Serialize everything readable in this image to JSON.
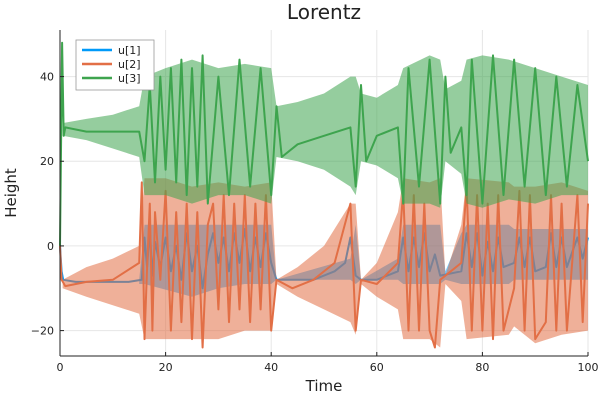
{
  "chart_data": {
    "type": "line",
    "title": "Lorentz",
    "xlabel": "Time",
    "ylabel": "Height",
    "xlim": [
      0,
      100
    ],
    "ylim": [
      -26,
      51
    ],
    "xticks": [
      0,
      20,
      40,
      60,
      80,
      100
    ],
    "yticks": [
      -20,
      0,
      20,
      40
    ],
    "grid": true,
    "legend_position": "top-left",
    "series": [
      {
        "name": "u[1]",
        "color": "#009af9",
        "points": [
          [
            0,
            0
          ],
          [
            0.3,
            -6
          ],
          [
            0.6,
            -8
          ],
          [
            3,
            -8.5
          ],
          [
            8,
            -8.5
          ],
          [
            13,
            -8.5
          ],
          [
            15.5,
            -8
          ],
          [
            16,
            2
          ],
          [
            16.5,
            -5
          ],
          [
            17,
            4
          ],
          [
            17.5,
            -7
          ],
          [
            18,
            1
          ],
          [
            19,
            -5
          ],
          [
            20,
            2
          ],
          [
            21,
            -6
          ],
          [
            22,
            0
          ],
          [
            23,
            -8
          ],
          [
            24,
            3
          ],
          [
            25,
            -6
          ],
          [
            26,
            0
          ],
          [
            27,
            -10
          ],
          [
            28,
            -2
          ],
          [
            29,
            3
          ],
          [
            30,
            -4
          ],
          [
            31,
            2
          ],
          [
            32,
            -6
          ],
          [
            33,
            3
          ],
          [
            34,
            -4
          ],
          [
            35,
            4
          ],
          [
            36,
            -6
          ],
          [
            37,
            2
          ],
          [
            38,
            -5
          ],
          [
            39,
            3
          ],
          [
            40,
            -4
          ],
          [
            41,
            -8
          ],
          [
            43,
            -8
          ],
          [
            48,
            -8
          ],
          [
            52,
            -6
          ],
          [
            54,
            -4
          ],
          [
            55,
            2
          ],
          [
            56,
            -7
          ],
          [
            57,
            -8
          ],
          [
            60,
            -8
          ],
          [
            64,
            -6
          ],
          [
            65,
            2
          ],
          [
            66,
            -6
          ],
          [
            67,
            2
          ],
          [
            68,
            -5
          ],
          [
            69,
            3
          ],
          [
            70,
            -6
          ],
          [
            71,
            -2
          ],
          [
            72,
            -7
          ],
          [
            76,
            -6
          ],
          [
            77,
            3
          ],
          [
            78,
            -5
          ],
          [
            79,
            3
          ],
          [
            80,
            -7
          ],
          [
            81,
            1
          ],
          [
            82,
            -6
          ],
          [
            83,
            2
          ],
          [
            84,
            -5
          ],
          [
            86,
            -4
          ],
          [
            87,
            2
          ],
          [
            88,
            -5
          ],
          [
            89,
            2
          ],
          [
            90,
            -6
          ],
          [
            92,
            -5
          ],
          [
            93,
            3
          ],
          [
            94,
            -5
          ],
          [
            95,
            2
          ],
          [
            96,
            -5
          ],
          [
            98,
            2
          ],
          [
            99,
            -3
          ],
          [
            100,
            2
          ]
        ],
        "envelope": [
          [
            15,
            -9,
            -8
          ],
          [
            16,
            -9,
            5
          ],
          [
            25,
            -12,
            5
          ],
          [
            30,
            -10,
            5
          ],
          [
            35,
            -9,
            5
          ],
          [
            40,
            -9,
            5
          ],
          [
            41,
            -8,
            -8
          ],
          [
            55,
            -8,
            -3
          ],
          [
            56,
            -9,
            5
          ],
          [
            57,
            -8,
            -8
          ],
          [
            64,
            -8,
            -3
          ],
          [
            65,
            -9,
            5
          ],
          [
            72,
            -9,
            5
          ],
          [
            73,
            -8,
            -6
          ],
          [
            76,
            -9,
            3
          ],
          [
            77,
            -9,
            5
          ],
          [
            85,
            -9,
            5
          ],
          [
            86,
            -8,
            4
          ],
          [
            100,
            -8,
            4
          ]
        ]
      },
      {
        "name": "u[2]",
        "color": "#e26f46",
        "points": [
          [
            0,
            0
          ],
          [
            0.3,
            -8
          ],
          [
            1,
            -9.5
          ],
          [
            5,
            -8.5
          ],
          [
            10,
            -8
          ],
          [
            15,
            -4
          ],
          [
            15.5,
            15
          ],
          [
            16,
            -22
          ],
          [
            16.5,
            -5
          ],
          [
            17,
            10
          ],
          [
            17.5,
            -20
          ],
          [
            18,
            8
          ],
          [
            19,
            -8
          ],
          [
            20,
            13
          ],
          [
            21,
            -20
          ],
          [
            22,
            8
          ],
          [
            23,
            -18
          ],
          [
            24,
            10
          ],
          [
            25,
            -22
          ],
          [
            26,
            8
          ],
          [
            27,
            -24
          ],
          [
            28,
            5
          ],
          [
            29,
            10
          ],
          [
            30,
            -15
          ],
          [
            31,
            12
          ],
          [
            32,
            -18
          ],
          [
            33,
            10
          ],
          [
            34,
            -15
          ],
          [
            35,
            12
          ],
          [
            36,
            -18
          ],
          [
            37,
            10
          ],
          [
            38,
            -15
          ],
          [
            39,
            12
          ],
          [
            40,
            -20
          ],
          [
            41,
            -8
          ],
          [
            44,
            -10
          ],
          [
            48,
            -8
          ],
          [
            52,
            -4
          ],
          [
            55,
            10
          ],
          [
            56,
            -20
          ],
          [
            57,
            -8
          ],
          [
            60,
            -9
          ],
          [
            64,
            -4
          ],
          [
            65,
            13
          ],
          [
            66,
            -20
          ],
          [
            67,
            12
          ],
          [
            68,
            -20
          ],
          [
            69,
            10
          ],
          [
            70,
            -20
          ],
          [
            71,
            -24
          ],
          [
            72,
            -8
          ],
          [
            76,
            -4
          ],
          [
            77,
            14
          ],
          [
            78,
            -20
          ],
          [
            79,
            12
          ],
          [
            80,
            -20
          ],
          [
            81,
            10
          ],
          [
            82,
            -22
          ],
          [
            83,
            12
          ],
          [
            84,
            -20
          ],
          [
            86,
            -10
          ],
          [
            87,
            13
          ],
          [
            88,
            -20
          ],
          [
            89,
            12
          ],
          [
            90,
            -22
          ],
          [
            92,
            -18
          ],
          [
            93,
            12
          ],
          [
            94,
            -20
          ],
          [
            95,
            10
          ],
          [
            96,
            -20
          ],
          [
            98,
            12
          ],
          [
            99,
            -18
          ],
          [
            100,
            10
          ]
        ],
        "envelope": [
          [
            0.5,
            -10,
            -8
          ],
          [
            5,
            -12,
            -5
          ],
          [
            10,
            -14,
            -3
          ],
          [
            15,
            -16,
            0
          ],
          [
            16,
            -22,
            16
          ],
          [
            20,
            -22,
            16
          ],
          [
            25,
            -22,
            14
          ],
          [
            30,
            -22,
            15
          ],
          [
            35,
            -20,
            14
          ],
          [
            40,
            -20,
            15
          ],
          [
            41,
            -9,
            -8
          ],
          [
            45,
            -12,
            -5
          ],
          [
            50,
            -15,
            0
          ],
          [
            55,
            -18,
            10
          ],
          [
            56,
            -21,
            10
          ],
          [
            57,
            -9,
            -8
          ],
          [
            60,
            -12,
            -4
          ],
          [
            64,
            -15,
            8
          ],
          [
            65,
            -22,
            16
          ],
          [
            70,
            -22,
            15
          ],
          [
            72,
            -24,
            16
          ],
          [
            73,
            -9,
            -7
          ],
          [
            76,
            -13,
            5
          ],
          [
            77,
            -22,
            16
          ],
          [
            85,
            -21,
            15
          ],
          [
            86,
            -19,
            14
          ],
          [
            90,
            -23,
            14
          ],
          [
            95,
            -21,
            15
          ],
          [
            100,
            -20,
            13
          ]
        ]
      },
      {
        "name": "u[3]",
        "color": "#3ea44e",
        "points": [
          [
            0,
            0
          ],
          [
            0.2,
            25
          ],
          [
            0.4,
            48
          ],
          [
            0.7,
            26
          ],
          [
            1,
            28
          ],
          [
            5,
            27
          ],
          [
            10,
            27
          ],
          [
            15,
            27
          ],
          [
            16,
            20
          ],
          [
            17,
            38
          ],
          [
            18,
            15
          ],
          [
            19,
            40
          ],
          [
            20,
            18
          ],
          [
            21,
            42
          ],
          [
            22,
            15
          ],
          [
            23,
            44
          ],
          [
            24,
            12
          ],
          [
            25,
            42
          ],
          [
            26,
            14
          ],
          [
            27,
            45
          ],
          [
            28,
            10
          ],
          [
            30,
            40
          ],
          [
            32,
            12
          ],
          [
            34,
            44
          ],
          [
            36,
            14
          ],
          [
            38,
            42
          ],
          [
            40,
            12
          ],
          [
            41,
            33
          ],
          [
            42,
            21
          ],
          [
            45,
            24
          ],
          [
            50,
            26
          ],
          [
            55,
            28
          ],
          [
            56,
            14
          ],
          [
            57,
            38
          ],
          [
            58,
            20
          ],
          [
            60,
            26
          ],
          [
            64,
            28
          ],
          [
            65,
            10
          ],
          [
            66,
            42
          ],
          [
            68,
            14
          ],
          [
            70,
            44
          ],
          [
            72,
            10
          ],
          [
            73,
            40
          ],
          [
            74,
            22
          ],
          [
            76,
            28
          ],
          [
            77,
            12
          ],
          [
            78,
            44
          ],
          [
            80,
            10
          ],
          [
            82,
            45
          ],
          [
            84,
            12
          ],
          [
            86,
            44
          ],
          [
            88,
            14
          ],
          [
            90,
            42
          ],
          [
            92,
            12
          ],
          [
            94,
            40
          ],
          [
            96,
            14
          ],
          [
            98,
            38
          ],
          [
            100,
            20
          ]
        ],
        "envelope": [
          [
            0.5,
            26,
            29
          ],
          [
            5,
            25,
            30
          ],
          [
            10,
            23,
            31
          ],
          [
            15,
            21,
            33
          ],
          [
            16,
            12,
            40
          ],
          [
            20,
            12,
            42
          ],
          [
            25,
            10,
            44
          ],
          [
            30,
            12,
            42
          ],
          [
            35,
            12,
            43
          ],
          [
            40,
            10,
            42
          ],
          [
            41,
            21,
            33
          ],
          [
            45,
            20,
            34
          ],
          [
            50,
            18,
            36
          ],
          [
            55,
            14,
            40
          ],
          [
            56,
            12,
            40
          ],
          [
            57,
            20,
            36
          ],
          [
            60,
            19,
            35
          ],
          [
            64,
            16,
            38
          ],
          [
            65,
            10,
            42
          ],
          [
            70,
            10,
            45
          ],
          [
            72,
            9,
            44
          ],
          [
            73,
            20,
            37
          ],
          [
            76,
            17,
            39
          ],
          [
            77,
            10,
            44
          ],
          [
            80,
            9,
            45
          ],
          [
            85,
            11,
            44
          ],
          [
            90,
            10,
            42
          ],
          [
            95,
            12,
            40
          ],
          [
            100,
            12,
            38
          ]
        ]
      }
    ]
  }
}
